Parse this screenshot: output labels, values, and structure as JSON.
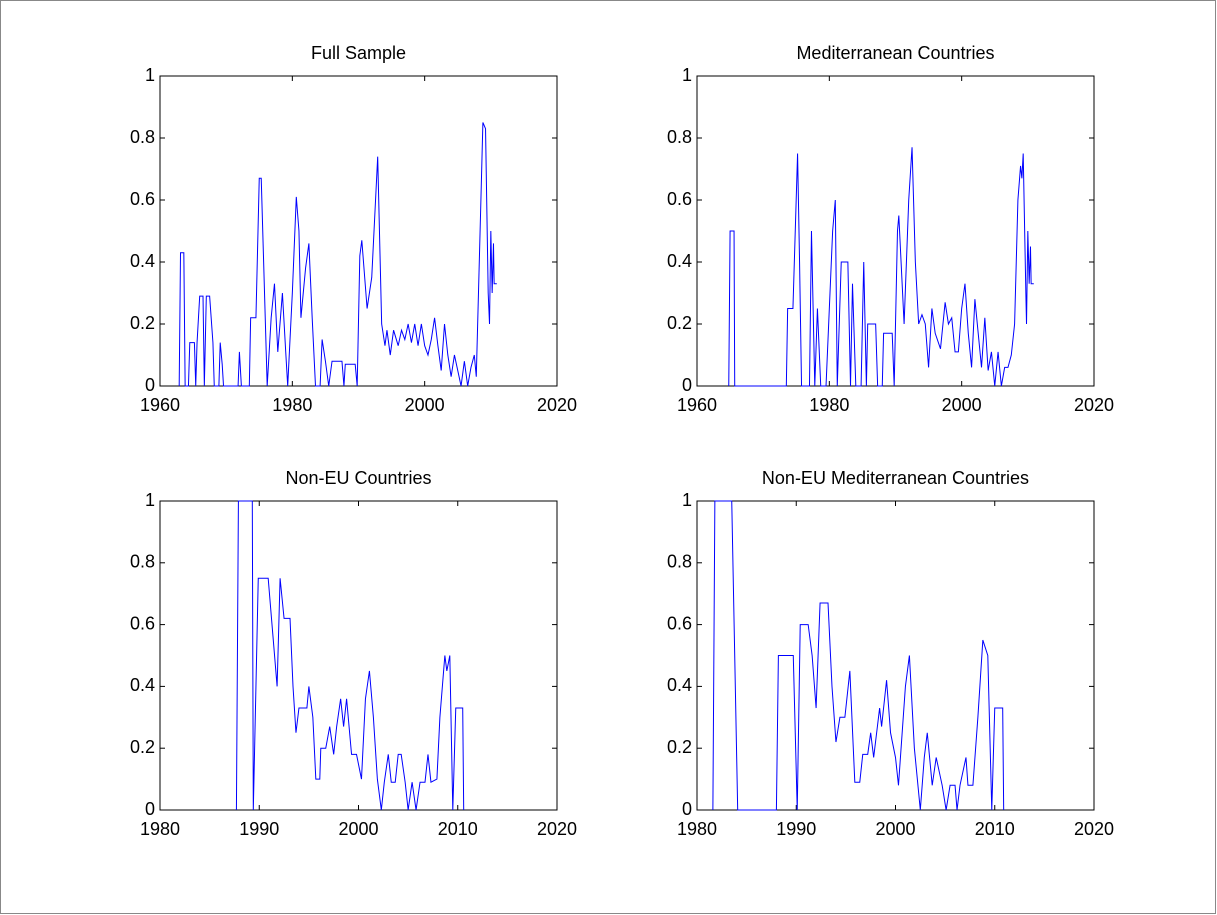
{
  "chart_data": [
    {
      "type": "line",
      "title": "Full Sample",
      "color": "#0000ff",
      "x": [
        1962.9,
        1963.1,
        1963.6,
        1963.8,
        1964.3,
        1964.5,
        1965.2,
        1965.4,
        1965.6,
        1966,
        1966.5,
        1966.7,
        1967,
        1967.5,
        1968,
        1968.2,
        1968.9,
        1969.1,
        1969.4,
        1969.6,
        1971.8,
        1972,
        1972.3,
        1973.5,
        1973.7,
        1974.5,
        1975,
        1975.3,
        1976.2,
        1976.8,
        1977.3,
        1977.8,
        1978.5,
        1979,
        1979.3,
        1980,
        1980.6,
        1981,
        1981.3,
        1982,
        1982.5,
        1983,
        1983.5,
        1984.2,
        1984.5,
        1985,
        1985.5,
        1986,
        1987.5,
        1987.8,
        1988,
        1989.5,
        1989.8,
        1990.2,
        1990.5,
        1991.3,
        1992,
        1992.9,
        1993.5,
        1994,
        1994.3,
        1994.8,
        1995.3,
        1996,
        1996.5,
        1997,
        1997.5,
        1998,
        1998.5,
        1999,
        1999.5,
        2000,
        2000.5,
        2001,
        2001.5,
        2002,
        2002.5,
        2003,
        2003.5,
        2004,
        2004.5,
        2005,
        2005.5,
        2006,
        2006.5,
        2007,
        2007.5,
        2007.8,
        2008.5,
        2008.8,
        2009.2,
        2009.6,
        2009.8,
        2010,
        2010.2,
        2010.4,
        2010.5,
        2010.9
      ],
      "values": [
        0,
        0.43,
        0.43,
        0,
        0,
        0.14,
        0.14,
        0,
        0.14,
        0.29,
        0.29,
        0,
        0.29,
        0.29,
        0.14,
        0,
        0,
        0.14,
        0.07,
        0,
        0,
        0.11,
        0,
        0,
        0.22,
        0.22,
        0.67,
        0.67,
        0,
        0.22,
        0.33,
        0.11,
        0.3,
        0.11,
        0,
        0.3,
        0.61,
        0.5,
        0.22,
        0.38,
        0.46,
        0.22,
        0,
        0,
        0.15,
        0.08,
        0,
        0.08,
        0.08,
        0,
        0.07,
        0.07,
        0,
        0.42,
        0.47,
        0.25,
        0.35,
        0.74,
        0.2,
        0.13,
        0.18,
        0.1,
        0.18,
        0.13,
        0.18,
        0.15,
        0.2,
        0.14,
        0.2,
        0.13,
        0.2,
        0.13,
        0.1,
        0.15,
        0.22,
        0.13,
        0.05,
        0.2,
        0.1,
        0.03,
        0.1,
        0.05,
        0,
        0.08,
        0,
        0.06,
        0.1,
        0.03,
        0.6,
        0.85,
        0.83,
        0.3,
        0.2,
        0.5,
        0.3,
        0.46,
        0.33,
        0.33
      ],
      "xlim": [
        1960,
        2020
      ],
      "ylim": [
        0,
        1
      ],
      "xticks": [
        1960,
        1980,
        2000,
        2020
      ],
      "yticks": [
        0,
        0.2,
        0.4,
        0.6,
        0.8,
        1
      ]
    },
    {
      "type": "line",
      "title": "Mediterranean Countries",
      "color": "#0000ff",
      "x": [
        1964.8,
        1965,
        1965.6,
        1965.7,
        1973.5,
        1973.7,
        1974.5,
        1975.2,
        1975.5,
        1975.8,
        1977,
        1977.3,
        1977.8,
        1978.2,
        1978.7,
        1979.5,
        1980.5,
        1980.9,
        1981.2,
        1981.8,
        1982.8,
        1983.2,
        1983.5,
        1984,
        1984.8,
        1985.2,
        1985.6,
        1985.8,
        1987,
        1987.3,
        1988,
        1988.2,
        1989.5,
        1989.8,
        1990.3,
        1990.5,
        1991.3,
        1992,
        1992.5,
        1993,
        1993.5,
        1994,
        1994.5,
        1995,
        1995.5,
        1996,
        1996.8,
        1997.5,
        1998,
        1998.5,
        1999,
        1999.5,
        2000,
        2000.5,
        2001,
        2001.5,
        2002,
        2002.5,
        2003,
        2003.5,
        2004,
        2004.5,
        2005,
        2005.5,
        2006,
        2006.5,
        2007,
        2007.5,
        2008,
        2008.5,
        2008.9,
        2009.1,
        2009.3,
        2009.7,
        2009.8,
        2010,
        2010.2,
        2010.4,
        2010.5,
        2010.9
      ],
      "values": [
        0,
        0.5,
        0.5,
        0,
        0,
        0.25,
        0.25,
        0.75,
        0.4,
        0,
        0,
        0.5,
        0,
        0.25,
        0,
        0,
        0.5,
        0.6,
        0,
        0.4,
        0.4,
        0,
        0.33,
        0,
        0,
        0.4,
        0,
        0.2,
        0.2,
        0,
        0,
        0.17,
        0.17,
        0,
        0.5,
        0.55,
        0.2,
        0.6,
        0.77,
        0.4,
        0.2,
        0.23,
        0.2,
        0.06,
        0.25,
        0.17,
        0.12,
        0.27,
        0.2,
        0.22,
        0.11,
        0.11,
        0.25,
        0.33,
        0.17,
        0.06,
        0.28,
        0.17,
        0.06,
        0.22,
        0.05,
        0.11,
        0,
        0.11,
        0,
        0.06,
        0.06,
        0.1,
        0.2,
        0.6,
        0.71,
        0.67,
        0.75,
        0.3,
        0.2,
        0.5,
        0.33,
        0.45,
        0.33,
        0.33
      ],
      "xlim": [
        1960,
        2020
      ],
      "ylim": [
        0,
        1
      ],
      "xticks": [
        1960,
        1980,
        2000,
        2020
      ],
      "yticks": [
        0,
        0.2,
        0.4,
        0.6,
        0.8,
        1
      ]
    },
    {
      "type": "line",
      "title": "Non-EU Countries",
      "color": "#0000ff",
      "x": [
        1987.7,
        1987.9,
        1989.3,
        1989.4,
        1989.9,
        1990.9,
        1991.8,
        1992.1,
        1992.5,
        1993.1,
        1993.4,
        1993.7,
        1994,
        1994.8,
        1995,
        1995.4,
        1995.7,
        1996.1,
        1996.2,
        1996.7,
        1997.1,
        1997.5,
        1997.8,
        1998.2,
        1998.5,
        1998.8,
        1999.3,
        1999.8,
        2000.3,
        2000.7,
        2001.1,
        2001.5,
        2001.9,
        2002.3,
        2002.6,
        2003,
        2003.3,
        2003.7,
        2004,
        2004.3,
        2004.7,
        2005,
        2005.4,
        2005.8,
        2006.2,
        2006.7,
        2007,
        2007.3,
        2007.9,
        2008.2,
        2008.7,
        2008.9,
        2009.2,
        2009.5,
        2009.8,
        2010.5,
        2010.6
      ],
      "values": [
        0,
        1,
        1,
        0,
        0.75,
        0.75,
        0.4,
        0.75,
        0.62,
        0.62,
        0.4,
        0.25,
        0.33,
        0.33,
        0.4,
        0.3,
        0.1,
        0.1,
        0.2,
        0.2,
        0.27,
        0.18,
        0.27,
        0.36,
        0.27,
        0.36,
        0.18,
        0.18,
        0.1,
        0.36,
        0.45,
        0.3,
        0.1,
        0,
        0.09,
        0.18,
        0.09,
        0.09,
        0.18,
        0.18,
        0.09,
        0,
        0.09,
        0,
        0.09,
        0.09,
        0.18,
        0.09,
        0.1,
        0.3,
        0.5,
        0.45,
        0.5,
        0,
        0.33,
        0.33,
        0
      ],
      "xlim": [
        1980,
        2020
      ],
      "ylim": [
        0,
        1
      ],
      "xticks": [
        1980,
        1990,
        2000,
        2010,
        2020
      ],
      "yticks": [
        0,
        0.2,
        0.4,
        0.6,
        0.8,
        1
      ]
    },
    {
      "type": "line",
      "title": "Non-EU Mediterranean Countries",
      "color": "#0000ff",
      "x": [
        1981.6,
        1981.8,
        1983.5,
        1984.1,
        1988,
        1988.2,
        1989.7,
        1990.1,
        1990.4,
        1991.2,
        1991.6,
        1992,
        1992.4,
        1993.2,
        1993.6,
        1994,
        1994.4,
        1994.9,
        1995.4,
        1995.9,
        1996.4,
        1996.7,
        1997.2,
        1997.5,
        1997.8,
        1998.4,
        1998.6,
        1999.1,
        1999.5,
        2000,
        2000.3,
        2001,
        2001.4,
        2001.9,
        2002.5,
        2002.9,
        2003.2,
        2003.7,
        2004.1,
        2004.7,
        2005.1,
        2005.5,
        2006,
        2006.2,
        2006.5,
        2007.1,
        2007.3,
        2007.8,
        2008.3,
        2008.8,
        2009.3,
        2009.7,
        2010,
        2010.8,
        2010.9
      ],
      "values": [
        0,
        1,
        1,
        0,
        0,
        0.5,
        0.5,
        0,
        0.6,
        0.6,
        0.5,
        0.33,
        0.67,
        0.67,
        0.4,
        0.22,
        0.3,
        0.3,
        0.45,
        0.09,
        0.09,
        0.18,
        0.18,
        0.25,
        0.17,
        0.33,
        0.27,
        0.42,
        0.25,
        0.17,
        0.08,
        0.4,
        0.5,
        0.2,
        0,
        0.17,
        0.25,
        0.08,
        0.17,
        0.08,
        0,
        0.08,
        0.08,
        0,
        0.08,
        0.17,
        0.08,
        0.08,
        0.3,
        0.55,
        0.5,
        0,
        0.33,
        0.33,
        0
      ],
      "xlim": [
        1980,
        2020
      ],
      "ylim": [
        0,
        1
      ],
      "xticks": [
        1980,
        1990,
        2000,
        2010,
        2020
      ],
      "yticks": [
        0,
        0.2,
        0.4,
        0.6,
        0.8,
        1
      ]
    }
  ]
}
